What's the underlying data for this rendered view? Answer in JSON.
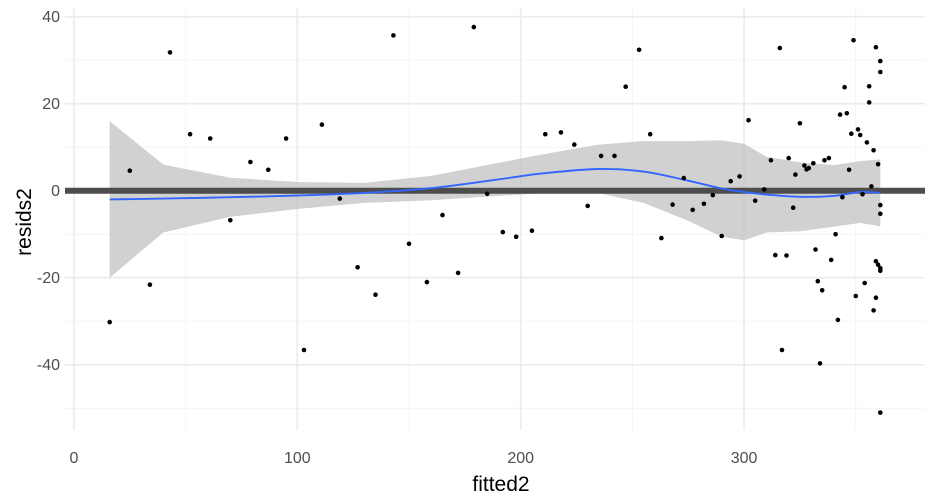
{
  "chart_data": {
    "type": "scatter",
    "xlabel": "fitted2",
    "ylabel": "resids2",
    "xlim": [
      -4,
      381
    ],
    "ylim": [
      -55,
      42
    ],
    "x_ticks": [
      0,
      100,
      200,
      300
    ],
    "x_tick_labels": [
      "0",
      "100",
      "200",
      "300"
    ],
    "y_ticks": [
      -40,
      -20,
      0,
      20,
      40
    ],
    "y_tick_labels": [
      "-40",
      "-20",
      "0",
      "20",
      "40"
    ],
    "grid": true,
    "reference_line": {
      "y": 0,
      "color": "#4d4d4d"
    },
    "colors": {
      "points": "#000000",
      "smooth": "#3366ff",
      "ribbon": "#bdbdbd",
      "hline": "#4d4d4d"
    },
    "points": [
      {
        "x": 16,
        "y": -30.2
      },
      {
        "x": 25,
        "y": 4.6
      },
      {
        "x": 34,
        "y": -21.6
      },
      {
        "x": 43,
        "y": 31.8
      },
      {
        "x": 52,
        "y": 13.0
      },
      {
        "x": 61,
        "y": 12.0
      },
      {
        "x": 70,
        "y": -6.8
      },
      {
        "x": 79,
        "y": 6.6
      },
      {
        "x": 87,
        "y": 4.8
      },
      {
        "x": 95,
        "y": 12.0
      },
      {
        "x": 103,
        "y": -36.6
      },
      {
        "x": 111,
        "y": 15.2
      },
      {
        "x": 119,
        "y": -1.8
      },
      {
        "x": 127,
        "y": -17.6
      },
      {
        "x": 135,
        "y": -23.9
      },
      {
        "x": 143,
        "y": 35.7
      },
      {
        "x": 150,
        "y": -12.2
      },
      {
        "x": 158,
        "y": -21.0
      },
      {
        "x": 165,
        "y": -5.6
      },
      {
        "x": 172,
        "y": -18.9
      },
      {
        "x": 179,
        "y": 37.6
      },
      {
        "x": 185,
        "y": -0.7
      },
      {
        "x": 192,
        "y": -9.5
      },
      {
        "x": 198,
        "y": -10.6
      },
      {
        "x": 205,
        "y": -9.2
      },
      {
        "x": 211,
        "y": 13.0
      },
      {
        "x": 218,
        "y": 13.4
      },
      {
        "x": 224,
        "y": 10.6
      },
      {
        "x": 230,
        "y": -3.5
      },
      {
        "x": 236,
        "y": 8.0
      },
      {
        "x": 242,
        "y": 8.0
      },
      {
        "x": 247,
        "y": 23.9
      },
      {
        "x": 253,
        "y": 32.4
      },
      {
        "x": 258,
        "y": 13.0
      },
      {
        "x": 263,
        "y": -10.9
      },
      {
        "x": 268,
        "y": -3.2
      },
      {
        "x": 273,
        "y": 2.9
      },
      {
        "x": 277,
        "y": -4.4
      },
      {
        "x": 282,
        "y": -3.0
      },
      {
        "x": 286,
        "y": -1.0
      },
      {
        "x": 290,
        "y": -10.4
      },
      {
        "x": 294,
        "y": 2.2
      },
      {
        "x": 298,
        "y": 3.3
      },
      {
        "x": 302,
        "y": 16.2
      },
      {
        "x": 305,
        "y": -2.3
      },
      {
        "x": 309,
        "y": 0.3
      },
      {
        "x": 312,
        "y": 7.0
      },
      {
        "x": 314,
        "y": -14.8
      },
      {
        "x": 316,
        "y": 32.8
      },
      {
        "x": 317,
        "y": -36.6
      },
      {
        "x": 319,
        "y": -14.9
      },
      {
        "x": 320,
        "y": 7.5
      },
      {
        "x": 322,
        "y": -3.9
      },
      {
        "x": 323,
        "y": 3.7
      },
      {
        "x": 325,
        "y": 15.5
      },
      {
        "x": 327,
        "y": 5.8
      },
      {
        "x": 328,
        "y": 4.9
      },
      {
        "x": 329,
        "y": 5.2
      },
      {
        "x": 331,
        "y": 6.3
      },
      {
        "x": 332,
        "y": -13.5
      },
      {
        "x": 333,
        "y": -20.8
      },
      {
        "x": 334,
        "y": -39.7
      },
      {
        "x": 335,
        "y": -22.9
      },
      {
        "x": 336,
        "y": 7.0
      },
      {
        "x": 338,
        "y": 7.5
      },
      {
        "x": 339,
        "y": -15.9
      },
      {
        "x": 341,
        "y": -10.0
      },
      {
        "x": 342,
        "y": -29.7
      },
      {
        "x": 343,
        "y": 17.5
      },
      {
        "x": 344,
        "y": -1.5
      },
      {
        "x": 345,
        "y": 23.8
      },
      {
        "x": 346,
        "y": 17.8
      },
      {
        "x": 347,
        "y": 4.8
      },
      {
        "x": 348,
        "y": 13.1
      },
      {
        "x": 349,
        "y": 34.6
      },
      {
        "x": 350,
        "y": -24.2
      },
      {
        "x": 351,
        "y": 14.1
      },
      {
        "x": 352,
        "y": 12.8
      },
      {
        "x": 353,
        "y": -0.8
      },
      {
        "x": 354,
        "y": -21.2
      },
      {
        "x": 355,
        "y": 11.1
      },
      {
        "x": 356,
        "y": 24.0
      },
      {
        "x": 356,
        "y": 20.3
      },
      {
        "x": 357,
        "y": 1.0
      },
      {
        "x": 358,
        "y": 9.3
      },
      {
        "x": 358,
        "y": -27.5
      },
      {
        "x": 359,
        "y": -24.6
      },
      {
        "x": 359,
        "y": -16.2
      },
      {
        "x": 359,
        "y": 33.0
      },
      {
        "x": 360,
        "y": -17.0
      },
      {
        "x": 360,
        "y": 6.1
      },
      {
        "x": 361,
        "y": -18.4
      },
      {
        "x": 361,
        "y": 29.8
      },
      {
        "x": 361,
        "y": 27.3
      },
      {
        "x": 361,
        "y": -5.3
      },
      {
        "x": 361,
        "y": -17.8
      },
      {
        "x": 361,
        "y": -3.3
      },
      {
        "x": 361,
        "y": -51.0
      }
    ],
    "smooth_line": {
      "x": [
        16,
        40,
        70,
        100,
        130,
        160,
        190,
        210,
        235,
        255,
        275,
        290,
        300,
        310,
        325,
        340,
        352,
        361
      ],
      "y": [
        -2.0,
        -1.8,
        -1.5,
        -1.1,
        -0.5,
        0.6,
        2.6,
        4.0,
        5.0,
        4.4,
        2.3,
        0.5,
        -0.3,
        -0.9,
        -1.4,
        -1.2,
        -0.3,
        -0.5
      ],
      "upper": [
        16.0,
        6.0,
        3.0,
        2.0,
        1.8,
        3.4,
        6.4,
        8.4,
        10.6,
        11.4,
        11.4,
        11.6,
        10.8,
        7.8,
        6.5,
        5.9,
        6.8,
        7.2
      ],
      "lower": [
        -20.0,
        -9.6,
        -6.0,
        -4.2,
        -2.8,
        -2.2,
        -1.2,
        -0.6,
        -0.6,
        -2.8,
        -6.9,
        -10.6,
        -11.4,
        -9.6,
        -9.3,
        -8.3,
        -7.4,
        -8.2
      ]
    }
  }
}
